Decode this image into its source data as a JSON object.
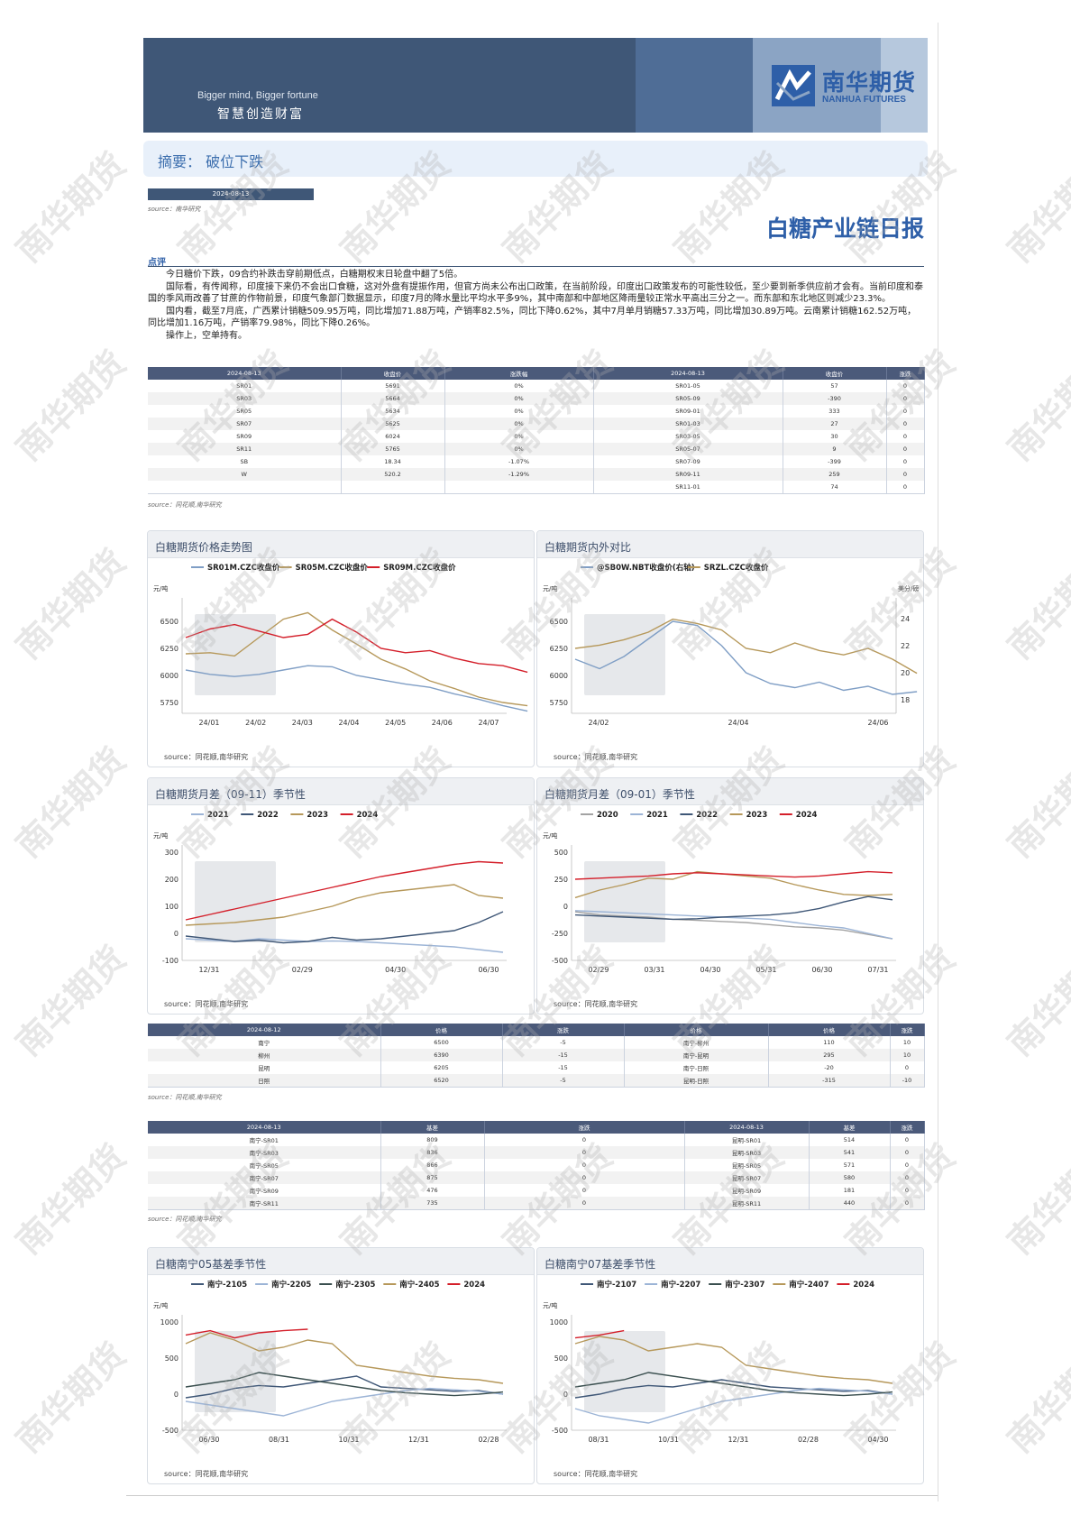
{
  "header": {
    "slogan_en": "Bigger mind, Bigger fortune",
    "slogan_cn": "智慧创造财富",
    "logo_cn": "南华期货",
    "logo_en": "NANHUA FUTURES",
    "brand_color": "#2e5fa8"
  },
  "summary": "摘要：  破位下跌",
  "date": "2024-08-13",
  "source_short": "source：南华研究",
  "source_tonghua": "source：同花顺,南华研究",
  "report_title": "白糖产业链日报",
  "comment_label": "点评",
  "comment": [
    "今日糖价下跌，09合约补跌击穿前期低点，白糖期权末日轮盘中翻了5倍。",
    "国际看，有传闻称，印度接下来仍不会出口食糖，这对外盘有提振作用，但官方尚未公布出口政策，在当前阶段，印度出口政策发布的可能性较低，至少要到新季供应前才会有。当前印度和泰国的季风雨改善了甘蔗的作物前景，印度气象部门数据显示，印度7月的降水量比平均水平多9%，其中南部和中部地区降雨量较正常水平高出三分之一。而东部和东北地区则减少23.3%。",
    "国内看，截至7月底，广西累计销糖509.95万吨，同比增加71.88万吨，产销率82.5%，同比下降0.62%，其中7月单月销糖57.33万吨，同比增加30.89万吨。云南累计销糖162.52万吨，同比增加1.16万吨，产销率79.98%，同比下降0.26%。",
    "操作上，空单持有。"
  ],
  "table1": {
    "headers": [
      "2024-08-13",
      "收盘价",
      "涨跌幅",
      "2024-08-13",
      "收盘价",
      "涨跌"
    ],
    "rows": [
      [
        "SR01",
        "5691",
        "0%",
        "SR01-05",
        "57",
        "0"
      ],
      [
        "SR03",
        "5664",
        "0%",
        "SR05-09",
        "-390",
        "0"
      ],
      [
        "SR05",
        "5634",
        "0%",
        "SR09-01",
        "333",
        "0"
      ],
      [
        "SR07",
        "5625",
        "0%",
        "SR01-03",
        "27",
        "0"
      ],
      [
        "SR09",
        "6024",
        "0%",
        "SR03-05",
        "30",
        "0"
      ],
      [
        "SR11",
        "5765",
        "0%",
        "SR05-07",
        "9",
        "0"
      ],
      [
        "SB",
        "18.34",
        "-1.07%",
        "SR07-09",
        "-399",
        "0"
      ],
      [
        "W",
        "520.2",
        "-1.29%",
        "SR09-11",
        "259",
        "0"
      ],
      [
        "",
        "",
        "",
        "SR11-01",
        "74",
        "0"
      ]
    ]
  },
  "table2": {
    "headers": [
      "2024-08-12",
      "价格",
      "涨跌",
      "价格",
      "价格",
      "涨跌"
    ],
    "rows": [
      [
        "南宁",
        "6500",
        "-5",
        "南宁-柳州",
        "110",
        "10"
      ],
      [
        "柳州",
        "6390",
        "-15",
        "南宁-昆明",
        "295",
        "10"
      ],
      [
        "昆明",
        "6205",
        "-15",
        "南宁-日照",
        "-20",
        "0"
      ],
      [
        "日照",
        "6520",
        "-5",
        "昆明-日照",
        "-315",
        "-10"
      ]
    ]
  },
  "table3": {
    "headers": [
      "2024-08-13",
      "基差",
      "涨跌",
      "2024-08-13",
      "基差",
      "涨跌"
    ],
    "rows": [
      [
        "南宁-SR01",
        "809",
        "0",
        "昆明-SR01",
        "514",
        "0"
      ],
      [
        "南宁-SR03",
        "836",
        "0",
        "昆明-SR03",
        "541",
        "0"
      ],
      [
        "南宁-SR05",
        "866",
        "0",
        "昆明-SR05",
        "571",
        "0"
      ],
      [
        "南宁-SR07",
        "875",
        "0",
        "昆明-SR07",
        "580",
        "0"
      ],
      [
        "南宁-SR09",
        "476",
        "0",
        "昆明-SR09",
        "181",
        "0"
      ],
      [
        "南宁-SR11",
        "735",
        "0",
        "昆明-SR11",
        "440",
        "0"
      ]
    ]
  },
  "chart_data": [
    {
      "id": "c1",
      "type": "line",
      "title": "白糖期货价格走势图",
      "ylabel": "元/吨",
      "ylim": [
        5650,
        6650
      ],
      "yticks": [
        5750,
        6000,
        6250,
        6500
      ],
      "xticks": [
        "24/01",
        "24/02",
        "24/03",
        "24/04",
        "24/05",
        "24/06",
        "24/07"
      ],
      "series": [
        {
          "name": "SR01M.CZC收盘价",
          "color": "#7f9ec5",
          "values": [
            6050,
            6010,
            5990,
            6010,
            6050,
            6090,
            6080,
            6000,
            5960,
            5920,
            5890,
            5830,
            5780,
            5720,
            5670
          ]
        },
        {
          "name": "SR05M.CZC收盘价",
          "color": "#b6985a",
          "values": [
            6200,
            6210,
            6180,
            6350,
            6520,
            6580,
            6420,
            6290,
            6150,
            6060,
            5950,
            5880,
            5800,
            5750,
            5720
          ]
        },
        {
          "name": "SR09M.CZC收盘价",
          "color": "#d41f2a",
          "values": [
            6350,
            6430,
            6470,
            6410,
            6350,
            6380,
            6520,
            6400,
            6250,
            6210,
            6230,
            6160,
            6110,
            6090,
            6030
          ]
        }
      ]
    },
    {
      "id": "c2",
      "type": "line",
      "title": "白糖期货内外对比",
      "ylabel": "元/吨",
      "ylabel_right": "美分/磅",
      "ylim": [
        5650,
        6650
      ],
      "yticks": [
        5750,
        6000,
        6250,
        6500
      ],
      "y2lim": [
        17,
        25
      ],
      "y2ticks": [
        18,
        20,
        22,
        24
      ],
      "xticks": [
        "24/02",
        "24/04",
        "24/06"
      ],
      "series": [
        {
          "name": "@SB0W.NBT收盘价(右轴)",
          "color": "#7f9ec5",
          "axis": "right",
          "values": [
            21.0,
            20.3,
            21.2,
            22.5,
            23.8,
            23.5,
            22.0,
            20.0,
            19.2,
            18.9,
            19.3,
            18.7,
            19.0,
            18.4,
            18.6
          ]
        },
        {
          "name": "SRZL.CZC收盘价",
          "color": "#b6985a",
          "axis": "left",
          "values": [
            6250,
            6280,
            6330,
            6400,
            6520,
            6480,
            6420,
            6250,
            6210,
            6300,
            6230,
            6190,
            6250,
            6150,
            6020
          ]
        }
      ]
    },
    {
      "id": "c3",
      "type": "line",
      "title": "白糖期货月差（09-11）季节性",
      "ylabel": "元/吨",
      "ylim": [
        -100,
        300
      ],
      "yticks": [
        -100,
        0,
        100,
        200,
        300
      ],
      "xticks": [
        "12/31",
        "02/29",
        "04/30",
        "06/30"
      ],
      "series": [
        {
          "name": "2021",
          "color": "#9cb4d6",
          "values": [
            -20,
            -25,
            -30,
            -20,
            -25,
            -30,
            -28,
            -30,
            -35,
            -40,
            -45,
            -50,
            -60,
            -70
          ]
        },
        {
          "name": "2022",
          "color": "#3f5777",
          "values": [
            -10,
            -20,
            -30,
            -25,
            -35,
            -30,
            -15,
            -25,
            -20,
            -10,
            0,
            10,
            40,
            80
          ]
        },
        {
          "name": "2023",
          "color": "#b6985a",
          "values": [
            30,
            35,
            40,
            50,
            60,
            80,
            100,
            130,
            150,
            160,
            170,
            180,
            140,
            130
          ]
        },
        {
          "name": "2024",
          "color": "#d41f2a",
          "values": [
            50,
            70,
            90,
            110,
            130,
            150,
            170,
            190,
            210,
            225,
            240,
            255,
            265,
            260
          ]
        }
      ]
    },
    {
      "id": "c4",
      "type": "line",
      "title": "白糖期货月差（09-01）季节性",
      "ylabel": "元/吨",
      "ylim": [
        -500,
        500
      ],
      "yticks": [
        -500,
        -250,
        0,
        250,
        500
      ],
      "xticks": [
        "02/29",
        "03/31",
        "04/30",
        "05/31",
        "06/30",
        "07/31"
      ],
      "series": [
        {
          "name": "2020",
          "color": "#a3a3a3",
          "values": [
            -50,
            -80,
            -90,
            -100,
            -120,
            -130,
            -140,
            -150,
            -170,
            -190,
            -200,
            -220,
            -260,
            -300
          ]
        },
        {
          "name": "2021",
          "color": "#9cb4d6",
          "values": [
            -40,
            -50,
            -60,
            -70,
            -80,
            -90,
            -100,
            -110,
            -120,
            -150,
            -180,
            -200,
            -250,
            -300
          ]
        },
        {
          "name": "2022",
          "color": "#3f5777",
          "values": [
            -80,
            -90,
            -100,
            -110,
            -120,
            -115,
            -100,
            -90,
            -80,
            -60,
            -20,
            40,
            90,
            60
          ]
        },
        {
          "name": "2023",
          "color": "#b6985a",
          "values": [
            80,
            150,
            200,
            260,
            250,
            320,
            300,
            280,
            260,
            200,
            150,
            110,
            100,
            110
          ]
        },
        {
          "name": "2024",
          "color": "#d41f2a",
          "values": [
            250,
            260,
            270,
            280,
            300,
            310,
            300,
            290,
            280,
            270,
            280,
            300,
            320,
            310
          ]
        }
      ]
    },
    {
      "id": "c5",
      "type": "line",
      "title": "白糖南宁05基差季节性",
      "ylabel": "元/吨",
      "ylim": [
        -500,
        1000
      ],
      "yticks": [
        -500,
        0,
        500,
        1000
      ],
      "xticks": [
        "06/30",
        "08/31",
        "10/31",
        "12/31",
        "02/28"
      ],
      "series": [
        {
          "name": "南宁-2105",
          "color": "#3f5777",
          "values": [
            -50,
            0,
            80,
            120,
            100,
            150,
            200,
            250,
            100,
            80,
            60,
            40,
            50,
            0
          ]
        },
        {
          "name": "南宁-2205",
          "color": "#9cb4d6",
          "values": [
            -100,
            -150,
            -200,
            -250,
            -300,
            -200,
            -100,
            -50,
            0,
            50,
            80,
            60,
            40,
            0
          ]
        },
        {
          "name": "南宁-2305",
          "color": "#3a4f4f",
          "values": [
            100,
            150,
            200,
            300,
            250,
            200,
            150,
            100,
            50,
            20,
            0,
            -20,
            0,
            30
          ]
        },
        {
          "name": "南宁-2405",
          "color": "#b6985a",
          "values": [
            700,
            850,
            750,
            600,
            650,
            750,
            700,
            400,
            350,
            300,
            250,
            220,
            200,
            150
          ]
        },
        {
          "name": "2024",
          "color": "#d41f2a",
          "values": [
            820,
            880,
            780,
            850,
            880,
            900
          ]
        }
      ]
    },
    {
      "id": "c6",
      "type": "line",
      "title": "白糖南宁07基差季节性",
      "ylabel": "元/吨",
      "ylim": [
        -500,
        1000
      ],
      "yticks": [
        -500,
        0,
        500,
        1000
      ],
      "xticks": [
        "08/31",
        "10/31",
        "12/31",
        "02/28",
        "04/30"
      ],
      "series": [
        {
          "name": "南宁-2107",
          "color": "#3f5777",
          "values": [
            -50,
            0,
            80,
            120,
            100,
            150,
            200,
            150,
            100,
            80,
            60,
            40,
            50,
            0
          ]
        },
        {
          "name": "南宁-2207",
          "color": "#9cb4d6",
          "values": [
            -200,
            -300,
            -350,
            -400,
            -300,
            -200,
            -100,
            -50,
            0,
            50,
            80,
            60,
            40,
            0
          ]
        },
        {
          "name": "南宁-2307",
          "color": "#3a4f4f",
          "values": [
            100,
            150,
            200,
            300,
            250,
            200,
            150,
            100,
            50,
            20,
            0,
            -20,
            0,
            30
          ]
        },
        {
          "name": "南宁-2407",
          "color": "#b6985a",
          "values": [
            700,
            800,
            750,
            600,
            650,
            700,
            650,
            400,
            350,
            300,
            250,
            220,
            200,
            150
          ]
        },
        {
          "name": "2024",
          "color": "#d41f2a",
          "values": [
            780,
            820,
            880
          ]
        }
      ]
    }
  ]
}
